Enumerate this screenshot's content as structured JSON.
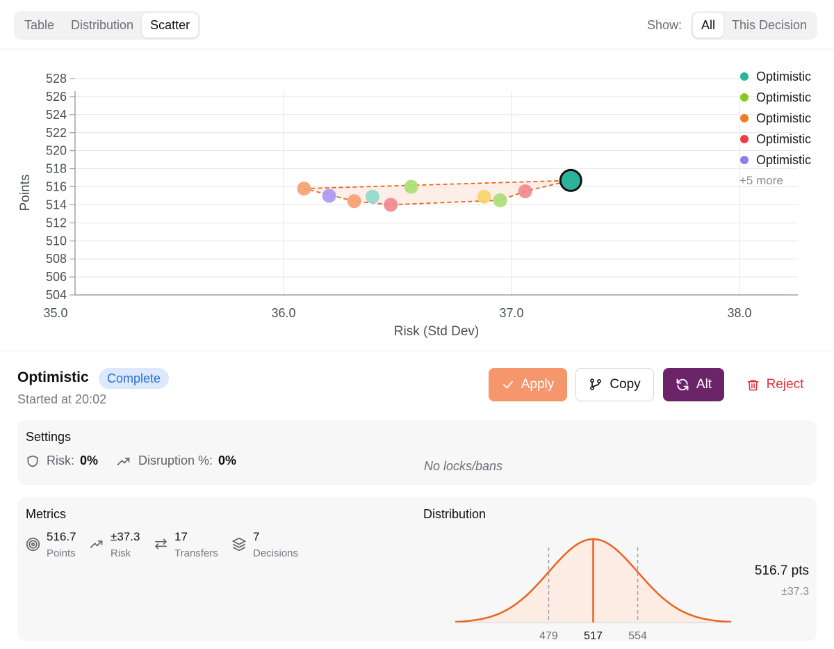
{
  "tabs": {
    "items": [
      "Table",
      "Distribution",
      "Scatter"
    ],
    "active": "Scatter"
  },
  "show_filter": {
    "label": "Show:",
    "options": [
      "All",
      "This Decision"
    ],
    "active": "All"
  },
  "chart_data": {
    "type": "scatter",
    "xlabel": "Risk (Std Dev)",
    "ylabel": "Points",
    "xlim": [
      35.0,
      38.25
    ],
    "ylim": [
      504,
      528
    ],
    "xticks": [
      "35.0",
      "36.0",
      "37.0",
      "38.0"
    ],
    "xtick_values": [
      35.0,
      36.0,
      37.0,
      38.0
    ],
    "yticks": [
      528,
      526,
      524,
      522,
      520,
      518,
      516,
      514,
      512,
      510,
      508,
      506,
      504
    ],
    "points": [
      {
        "x": 36.09,
        "y": 515.8,
        "color": "#f6a06f"
      },
      {
        "x": 36.2,
        "y": 515.0,
        "color": "#a897f2"
      },
      {
        "x": 36.31,
        "y": 514.4,
        "color": "#f6a06f"
      },
      {
        "x": 36.39,
        "y": 514.9,
        "color": "#8ed9cc"
      },
      {
        "x": 36.47,
        "y": 514.0,
        "color": "#f2868c"
      },
      {
        "x": 36.56,
        "y": 516.0,
        "color": "#a8df72"
      },
      {
        "x": 36.88,
        "y": 514.9,
        "color": "#f8d46a"
      },
      {
        "x": 36.95,
        "y": 514.5,
        "color": "#a8df72"
      },
      {
        "x": 37.06,
        "y": 515.5,
        "color": "#f2868c"
      }
    ],
    "highlight": {
      "x": 37.26,
      "y": 516.7,
      "color": "#2bb39c"
    },
    "frontier": [
      [
        36.09,
        515.8
      ],
      [
        37.26,
        516.7
      ],
      [
        37.06,
        515.5
      ],
      [
        36.95,
        514.5
      ],
      [
        36.47,
        514.0
      ],
      [
        36.31,
        514.4
      ],
      [
        36.09,
        515.8
      ]
    ],
    "frontier_color": "#e8641e"
  },
  "legend": {
    "items": [
      {
        "name": "Optimistic",
        "color": "#2bb39c"
      },
      {
        "name": "Optimistic",
        "color": "#84cc16"
      },
      {
        "name": "Optimistic",
        "color": "#f07d1c"
      },
      {
        "name": "Optimistic",
        "color": "#ef3b45"
      },
      {
        "name": "Optimistic",
        "color": "#8b80f0"
      }
    ],
    "more": "+5 more"
  },
  "detail": {
    "title": "Optimistic",
    "status": "Complete",
    "started": "Started at 20:02",
    "actions": {
      "apply": "Apply",
      "copy": "Copy",
      "alt": "Alt",
      "reject": "Reject"
    }
  },
  "settings": {
    "heading": "Settings",
    "risk_label": "Risk:",
    "risk_value": "0%",
    "disruption_label": "Disruption %:",
    "disruption_value": "0%",
    "locks": "No locks/bans"
  },
  "metrics": {
    "heading": "Metrics",
    "items": [
      {
        "value": "516.7",
        "label": "Points",
        "icon": "target-icon"
      },
      {
        "value": "±37.3",
        "label": "Risk",
        "icon": "trend-up-icon"
      },
      {
        "value": "17",
        "label": "Transfers",
        "icon": "transfer-icon"
      },
      {
        "value": "7",
        "label": "Decisions",
        "icon": "layers-icon"
      }
    ]
  },
  "distribution": {
    "heading": "Distribution",
    "mean": 516.7,
    "std": 37.3,
    "tick_low": "479",
    "tick_mid": "517",
    "tick_high": "554",
    "points_text": "516.7 pts",
    "std_text": "±37.3",
    "color": "#e8641e"
  }
}
